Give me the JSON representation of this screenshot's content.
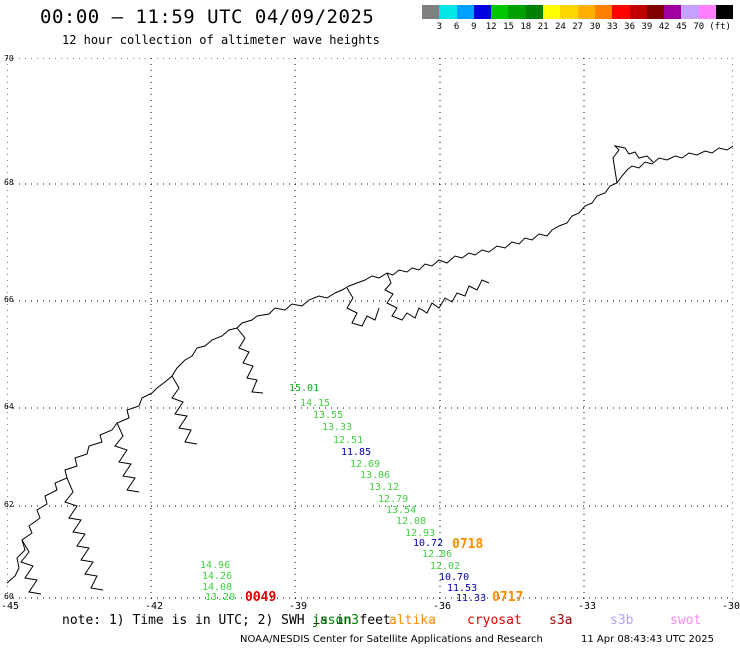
{
  "title": "00:00 – 11:59 UTC 04/09/2025",
  "subtitle": "12 hour collection of altimeter wave heights",
  "scale": {
    "colors": [
      "#808080",
      "#00e5e5",
      "#00a0ff",
      "#0000e0",
      "#00c800",
      "#00a000",
      "#008000",
      "#ffff00",
      "#ffd700",
      "#ffb000",
      "#ff8000",
      "#ff0000",
      "#c00000",
      "#800000",
      "#a000a0",
      "#c8a0ff",
      "#ff80ff",
      "#000000"
    ],
    "labels": [
      "3",
      "6",
      "9",
      "12",
      "15",
      "18",
      "21",
      "24",
      "27",
      "30",
      "33",
      "36",
      "39",
      "42",
      "45",
      "70",
      "(ft)"
    ]
  },
  "axes": {
    "lat_labels": [
      "70",
      "68",
      "66",
      "64",
      "62",
      "60"
    ],
    "lon_labels": [
      "-45",
      "-42",
      "-39",
      "-36",
      "-33",
      "-30"
    ]
  },
  "wave_heights": [
    {
      "text": "15.01",
      "color": "#10b010"
    },
    {
      "text": "14.15",
      "color": "#40d040"
    },
    {
      "text": "13.55",
      "color": "#40d040"
    },
    {
      "text": "13.33",
      "color": "#40d040"
    },
    {
      "text": "12.51",
      "color": "#40d040"
    },
    {
      "text": "11.85",
      "color": "#0000b0"
    },
    {
      "text": "12.69",
      "color": "#40d040"
    },
    {
      "text": "13.06",
      "color": "#40d040"
    },
    {
      "text": "13.12",
      "color": "#40d040"
    },
    {
      "text": "12.79",
      "color": "#40d040"
    },
    {
      "text": "13.54",
      "color": "#40d040"
    },
    {
      "text": "12.08",
      "color": "#40d040"
    },
    {
      "text": "12.93",
      "color": "#40d040"
    },
    {
      "text": "10.72",
      "color": "#0000b0"
    },
    {
      "text": "12.86",
      "color": "#40d040"
    },
    {
      "text": "12.02",
      "color": "#40d040"
    },
    {
      "text": "10.70",
      "color": "#0000b0"
    },
    {
      "text": "11.53",
      "color": "#0000b0"
    },
    {
      "text": "11.33",
      "color": "#0000b0"
    },
    {
      "text": "14.96",
      "color": "#40d040"
    },
    {
      "text": "14.26",
      "color": "#40d040"
    },
    {
      "text": "14.08",
      "color": "#40d040"
    },
    {
      "text": "13.20",
      "color": "#40d040"
    }
  ],
  "pass_labels": [
    {
      "text": "0718",
      "color": "#ff8c00"
    },
    {
      "text": "0717",
      "color": "#ff8c00"
    },
    {
      "text": "0049",
      "color": "#e00000"
    }
  ],
  "note": "note: 1) Time is in UTC; 2) SWH is in feet",
  "satellites": [
    {
      "text": "jason3",
      "color": "#008000"
    },
    {
      "text": "altika",
      "color": "#ff8c00"
    },
    {
      "text": "cryosat",
      "color": "#e00000"
    },
    {
      "text": "s3a",
      "color": "#a00000"
    },
    {
      "text": "s3b",
      "color": "#b8a0ff"
    },
    {
      "text": "swot",
      "color": "#ff88ee"
    }
  ],
  "credit": "NOAA/NESDIS Center for Satellite Applications and Research",
  "timestamp": "11 Apr 08:43:43 UTC 2025"
}
